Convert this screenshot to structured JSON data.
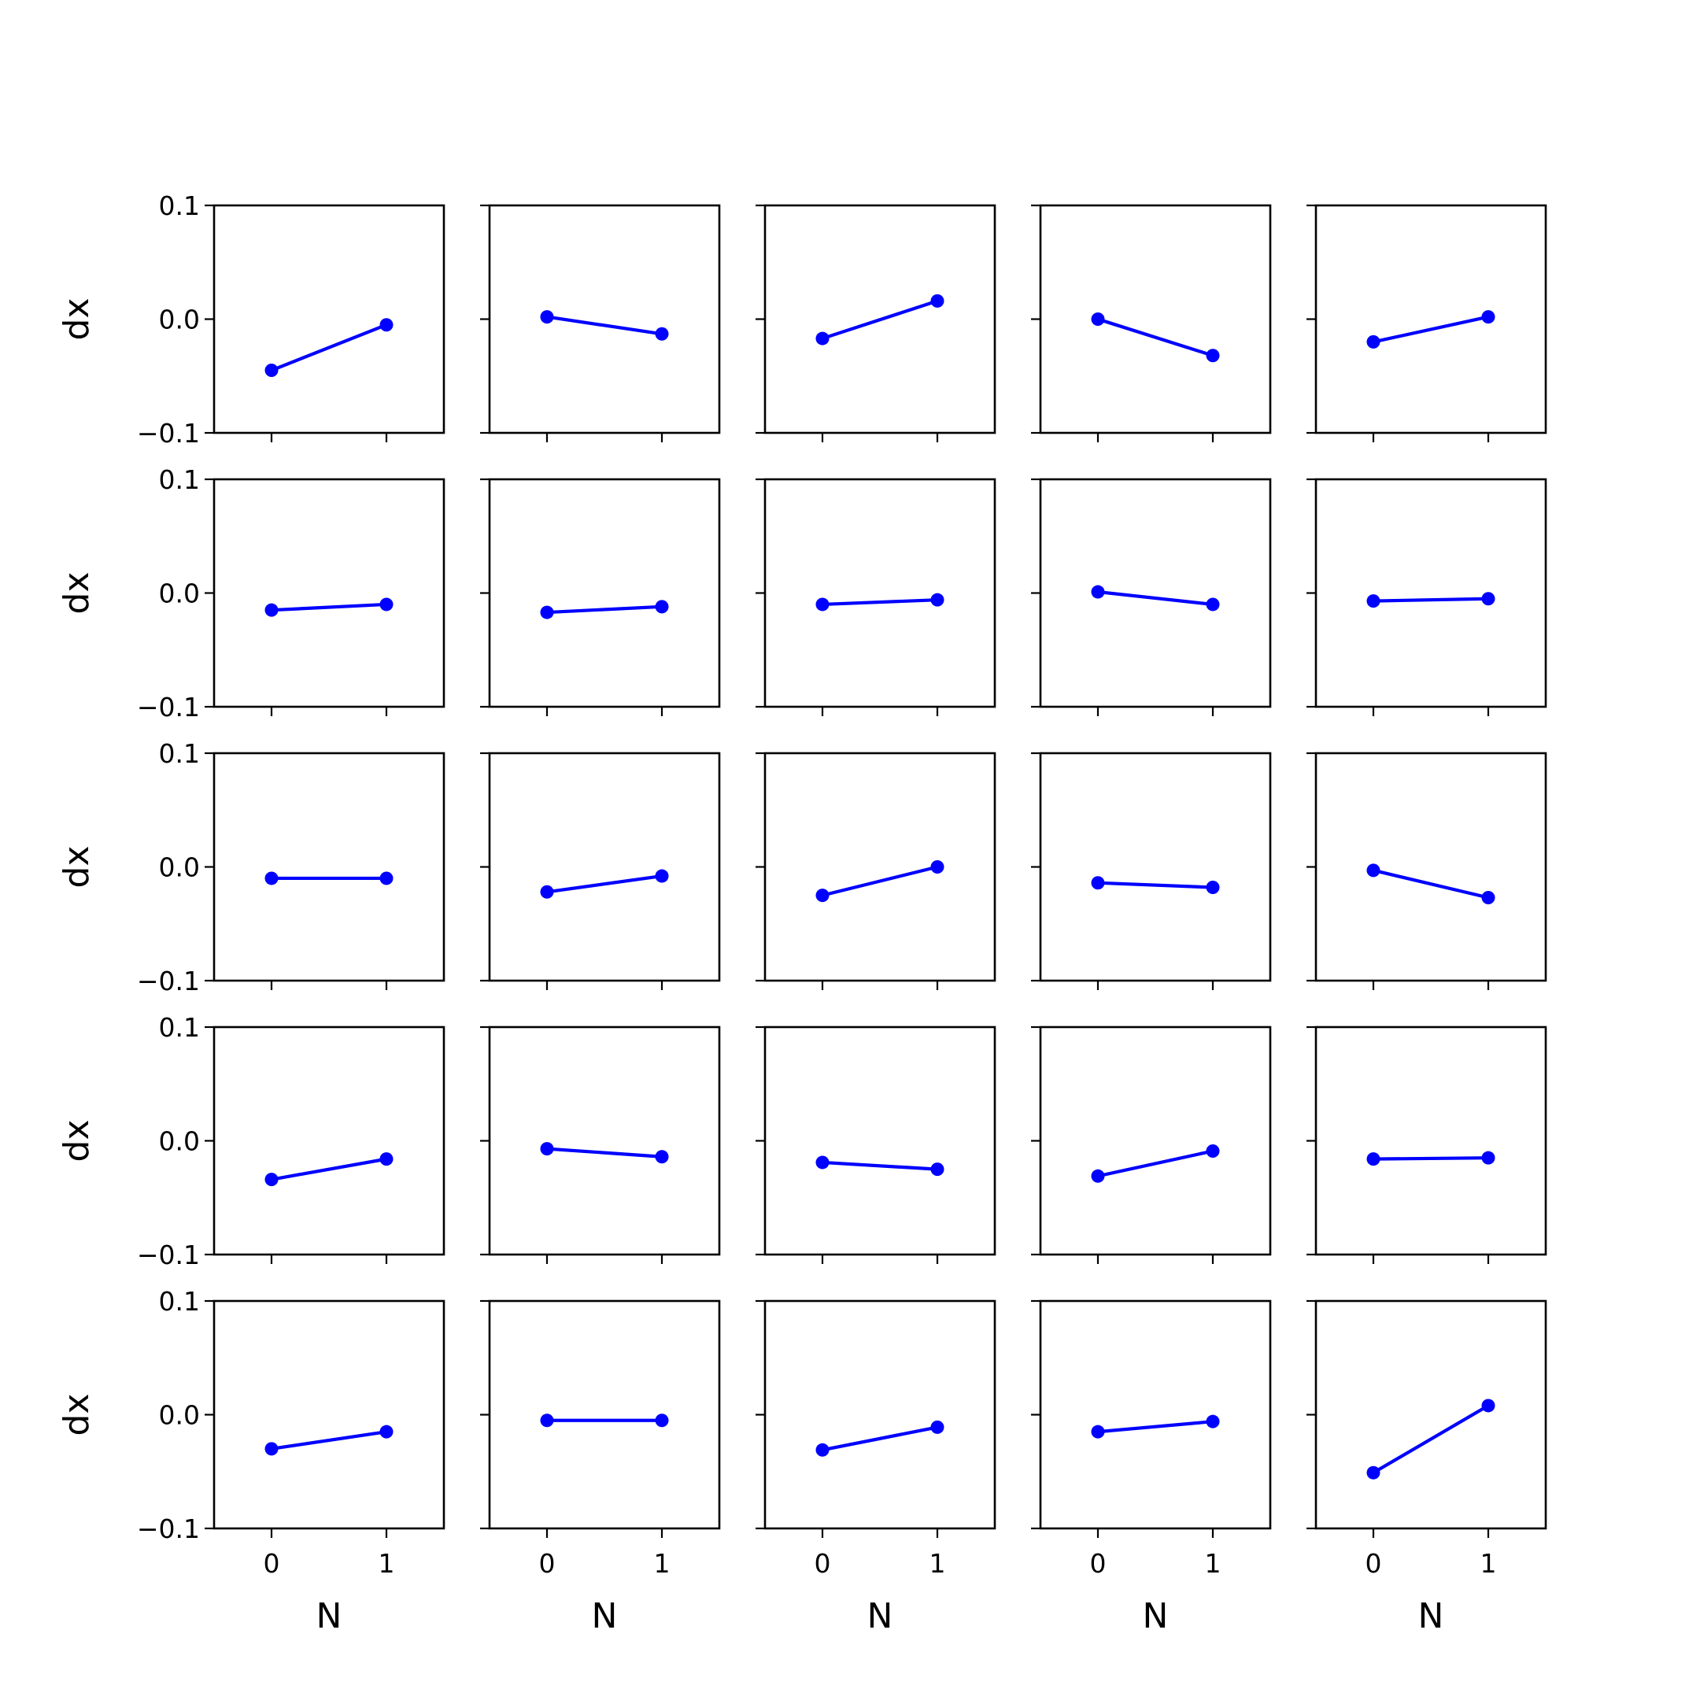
{
  "chart_data": {
    "type": "line",
    "layout": "5x5 grid of subplots, shared axes",
    "x_ticks": [
      0,
      1
    ],
    "xlim": [
      -0.5,
      1.5
    ],
    "y_ticks": [
      -0.1,
      0.0,
      0.1
    ],
    "y_tick_labels": [
      "−0.1",
      "0.0",
      "0.1"
    ],
    "ylim": [
      -0.1,
      0.1
    ],
    "xlabel": "N",
    "ylabel": "dx",
    "line_color": "#0000ff",
    "marker": "circle",
    "grid": false,
    "panels": [
      {
        "x": [
          0,
          1
        ],
        "y": [
          -0.045,
          -0.005
        ]
      },
      {
        "x": [
          0,
          1
        ],
        "y": [
          0.002,
          -0.013
        ]
      },
      {
        "x": [
          0,
          1
        ],
        "y": [
          -0.017,
          0.016
        ]
      },
      {
        "x": [
          0,
          1
        ],
        "y": [
          0.0,
          -0.032
        ]
      },
      {
        "x": [
          0,
          1
        ],
        "y": [
          -0.02,
          0.002
        ]
      },
      {
        "x": [
          0,
          1
        ],
        "y": [
          -0.015,
          -0.01
        ]
      },
      {
        "x": [
          0,
          1
        ],
        "y": [
          -0.017,
          -0.012
        ]
      },
      {
        "x": [
          0,
          1
        ],
        "y": [
          -0.01,
          -0.006
        ]
      },
      {
        "x": [
          0,
          1
        ],
        "y": [
          0.001,
          -0.01
        ]
      },
      {
        "x": [
          0,
          1
        ],
        "y": [
          -0.007,
          -0.005
        ]
      },
      {
        "x": [
          0,
          1
        ],
        "y": [
          -0.01,
          -0.01
        ]
      },
      {
        "x": [
          0,
          1
        ],
        "y": [
          -0.022,
          -0.008
        ]
      },
      {
        "x": [
          0,
          1
        ],
        "y": [
          -0.025,
          0.0
        ]
      },
      {
        "x": [
          0,
          1
        ],
        "y": [
          -0.014,
          -0.018
        ]
      },
      {
        "x": [
          0,
          1
        ],
        "y": [
          -0.003,
          -0.027
        ]
      },
      {
        "x": [
          0,
          1
        ],
        "y": [
          -0.034,
          -0.016
        ]
      },
      {
        "x": [
          0,
          1
        ],
        "y": [
          -0.007,
          -0.014
        ]
      },
      {
        "x": [
          0,
          1
        ],
        "y": [
          -0.019,
          -0.025
        ]
      },
      {
        "x": [
          0,
          1
        ],
        "y": [
          -0.031,
          -0.009
        ]
      },
      {
        "x": [
          0,
          1
        ],
        "y": [
          -0.016,
          -0.015
        ]
      },
      {
        "x": [
          0,
          1
        ],
        "y": [
          -0.03,
          -0.015
        ]
      },
      {
        "x": [
          0,
          1
        ],
        "y": [
          -0.005,
          -0.005
        ]
      },
      {
        "x": [
          0,
          1
        ],
        "y": [
          -0.031,
          -0.011
        ]
      },
      {
        "x": [
          0,
          1
        ],
        "y": [
          -0.015,
          -0.006
        ]
      },
      {
        "x": [
          0,
          1
        ],
        "y": [
          -0.051,
          0.008
        ]
      }
    ]
  }
}
